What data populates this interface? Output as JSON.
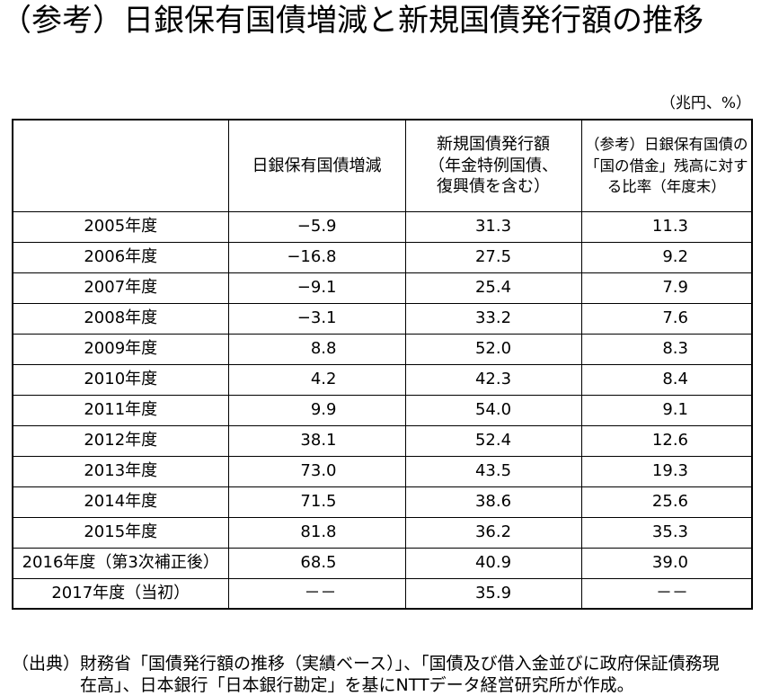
{
  "chart_data": {
    "type": "table",
    "title": "（参考）日銀保有国債増減と新規国債発行額の推移",
    "unit": "（兆円、%）",
    "columns": [
      {
        "lines": []
      },
      {
        "lines": [
          "日銀保有国債増減"
        ]
      },
      {
        "lines": [
          "新規国債発行額",
          "（年金特例国債、",
          "復興債を含む）"
        ]
      },
      {
        "lines": [
          "（参考）日銀保有国債の",
          "「国の借金」残高に対す",
          "る比率（年度末）"
        ]
      }
    ],
    "missing_label": "－－",
    "rows": [
      {
        "label": "2005年度",
        "values": [
          -5.9,
          31.3,
          11.3
        ]
      },
      {
        "label": "2006年度",
        "values": [
          -16.8,
          27.5,
          9.2
        ]
      },
      {
        "label": "2007年度",
        "values": [
          -9.1,
          25.4,
          7.9
        ]
      },
      {
        "label": "2008年度",
        "values": [
          -3.1,
          33.2,
          7.6
        ]
      },
      {
        "label": "2009年度",
        "values": [
          8.8,
          52.0,
          8.3
        ]
      },
      {
        "label": "2010年度",
        "values": [
          4.2,
          42.3,
          8.4
        ]
      },
      {
        "label": "2011年度",
        "values": [
          9.9,
          54.0,
          9.1
        ]
      },
      {
        "label": "2012年度",
        "values": [
          38.1,
          52.4,
          12.6
        ]
      },
      {
        "label": "2013年度",
        "values": [
          73.0,
          43.5,
          19.3
        ]
      },
      {
        "label": "2014年度",
        "values": [
          71.5,
          38.6,
          25.6
        ]
      },
      {
        "label": "2015年度",
        "values": [
          81.8,
          36.2,
          35.3
        ]
      },
      {
        "label": "2016年度（第3次補正後）",
        "values": [
          68.5,
          40.9,
          39.0
        ]
      },
      {
        "label": "2017年度（当初）",
        "values": [
          null,
          35.9,
          null
        ]
      }
    ]
  },
  "source": {
    "label": "（出典）",
    "lines": [
      "財務省「国債発行額の推移（実績ベース）」、「国債及び借入金並びに政府保証債務現",
      "在高」、日本銀行「日本銀行勘定」を基にNTTデータ経営研究所が作成。"
    ]
  }
}
